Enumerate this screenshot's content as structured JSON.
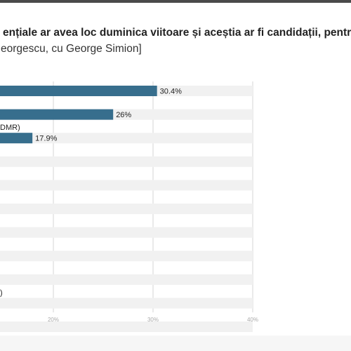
{
  "page": {
    "title": "ențiale ar avea loc duminica viitoare și aceștia ar fi candidații, pentru",
    "subtitle": "eorgescu, cu George Simion]"
  },
  "chart_data": {
    "type": "bar",
    "orientation": "horizontal",
    "categories": [
      "",
      "",
      "DMR)",
      "",
      "",
      "",
      "",
      "",
      "",
      ")",
      "",
      ""
    ],
    "values": [
      30.4,
      26,
      17.9,
      null,
      null,
      null,
      null,
      null,
      null,
      null,
      null,
      null
    ],
    "value_labels": [
      "30.4%",
      "26%",
      "17.9%",
      "",
      "",
      "",
      "",
      "",
      "",
      "",
      "",
      ""
    ],
    "xlim": [
      0,
      40
    ],
    "xticks": [
      20,
      30,
      40
    ],
    "xtick_labels": [
      "20%",
      "30%",
      "40%"
    ],
    "grid": true,
    "bar_color": "#376e8d",
    "track_color": "#f1f1f1"
  }
}
